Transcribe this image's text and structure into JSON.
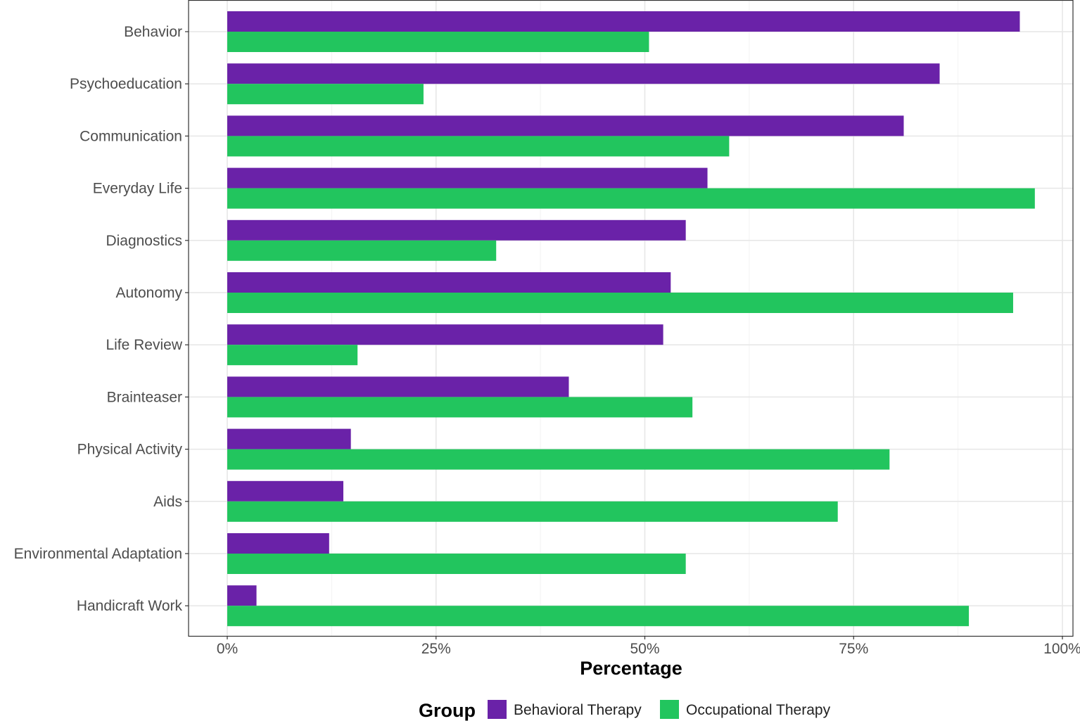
{
  "chart_data": {
    "type": "bar",
    "orientation": "horizontal",
    "title": "",
    "xlabel": "Percentage",
    "ylabel": "",
    "xlim": [
      0,
      100
    ],
    "x_ticks": [
      "0%",
      "25%",
      "50%",
      "75%",
      "100%"
    ],
    "x_tick_values": [
      0,
      25,
      50,
      75,
      100
    ],
    "grid": true,
    "categories": [
      "Behavior",
      "Psychoeducation",
      "Communication",
      "Everyday Life",
      "Diagnostics",
      "Autonomy",
      "Life Review",
      "Brainteaser",
      "Physical Activity",
      "Aids",
      "Environmental Adaptation",
      "Handicraft Work"
    ],
    "series": [
      {
        "name": "Behavioral Therapy",
        "color": "#6a22a8",
        "values": [
          94.9,
          85.3,
          81.0,
          57.5,
          54.9,
          53.1,
          52.2,
          40.9,
          14.8,
          13.9,
          12.2,
          3.5
        ]
      },
      {
        "name": "Occupational Therapy",
        "color": "#22c55e",
        "values": [
          50.5,
          23.5,
          60.1,
          96.7,
          32.2,
          94.1,
          15.6,
          55.7,
          79.3,
          73.1,
          54.9,
          88.8
        ]
      }
    ],
    "legend": {
      "title": "Group",
      "position": "bottom"
    }
  }
}
